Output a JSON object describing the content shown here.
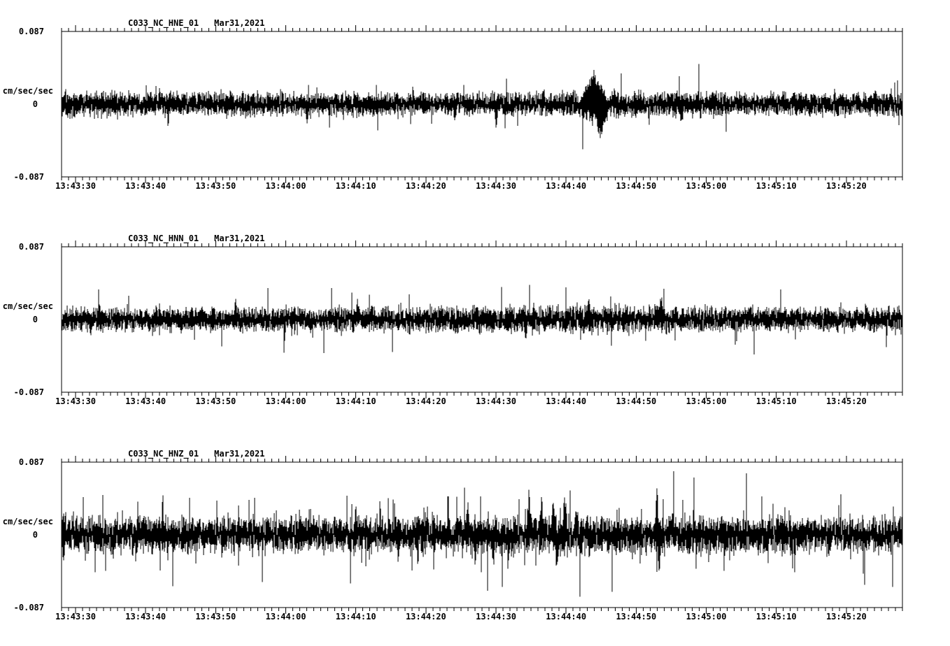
{
  "page": {
    "background": "#ffffff",
    "trace_color": "#000000",
    "axis_color": "#000000"
  },
  "chart_data": [
    {
      "type": "line",
      "title": "C033_NC_HNE_01",
      "date": "Mar31,2021",
      "series_name": "HNE",
      "ylabel": "cm/sec/sec",
      "ylim": [
        -0.087,
        0.087
      ],
      "yticks": [
        "0.087",
        "0",
        "-0.087"
      ],
      "x_start": "13:43:28",
      "x_end": "13:45:28",
      "duration_seconds": 120,
      "grid": false,
      "xticks": [
        "13:43:30",
        "13:43:40",
        "13:43:50",
        "13:44:00",
        "13:44:10",
        "13:44:20",
        "13:44:30",
        "13:44:40",
        "13:44:50",
        "13:45:00",
        "13:45:10",
        "13:45:20"
      ],
      "noise": {
        "seed": 11,
        "base_amplitude": 0.013,
        "spike_probability": 0.015,
        "spike_scale": 2.0
      },
      "envelope": [
        [
          0,
          1.12
        ],
        [
          0.2,
          1.0
        ],
        [
          0.45,
          0.95
        ],
        [
          0.6,
          1.0
        ],
        [
          0.63,
          1.32
        ],
        [
          0.67,
          1.05
        ],
        [
          0.85,
          0.95
        ],
        [
          1,
          1.08
        ]
      ],
      "events": [
        {
          "t": 0.633,
          "peak": 0.046,
          "width": 0.018
        },
        {
          "t": 0.641,
          "peak": -0.044,
          "width": 0.012
        },
        {
          "t": 0.517,
          "peak": -0.033,
          "width": 0.003
        },
        {
          "t": 0.468,
          "peak": -0.028,
          "width": 0.003
        },
        {
          "t": 0.292,
          "peak": -0.026,
          "width": 0.003
        },
        {
          "t": 0.737,
          "peak": -0.03,
          "width": 0.003
        },
        {
          "t": 0.573,
          "peak": 0.027,
          "width": 0.003
        }
      ]
    },
    {
      "type": "line",
      "title": "C033_NC_HNN_01",
      "date": "Mar31,2021",
      "series_name": "HNN",
      "ylabel": "cm/sec/sec",
      "ylim": [
        -0.087,
        0.087
      ],
      "yticks": [
        "0.087",
        "0",
        "-0.087"
      ],
      "x_start": "13:43:28",
      "x_end": "13:45:28",
      "duration_seconds": 120,
      "grid": false,
      "xticks": [
        "13:43:30",
        "13:43:40",
        "13:43:50",
        "13:44:00",
        "13:44:10",
        "13:44:20",
        "13:44:30",
        "13:44:40",
        "13:44:50",
        "13:45:00",
        "13:45:10",
        "13:45:20"
      ],
      "noise": {
        "seed": 22,
        "base_amplitude": 0.013,
        "spike_probability": 0.015,
        "spike_scale": 2.0
      },
      "envelope": [
        [
          0,
          1.0
        ],
        [
          0.35,
          1.02
        ],
        [
          0.5,
          1.12
        ],
        [
          0.68,
          1.15
        ],
        [
          0.8,
          1.02
        ],
        [
          0.92,
          1.0
        ],
        [
          1,
          1.06
        ]
      ],
      "events": [
        {
          "t": 0.552,
          "peak": -0.031,
          "width": 0.003
        },
        {
          "t": 0.627,
          "peak": 0.034,
          "width": 0.003
        },
        {
          "t": 0.713,
          "peak": 0.034,
          "width": 0.004
        },
        {
          "t": 0.352,
          "peak": 0.028,
          "width": 0.003
        },
        {
          "t": 0.207,
          "peak": 0.027,
          "width": 0.003
        }
      ]
    },
    {
      "type": "line",
      "title": "C033_NC_HNZ_01",
      "date": "Mar31,2021",
      "series_name": "HNZ",
      "ylabel": "cm/sec/sec",
      "ylim": [
        -0.087,
        0.087
      ],
      "yticks": [
        "0.087",
        "0",
        "-0.087"
      ],
      "x_start": "13:43:28",
      "x_end": "13:45:28",
      "duration_seconds": 120,
      "grid": false,
      "xticks": [
        "13:43:30",
        "13:43:40",
        "13:43:50",
        "13:44:00",
        "13:44:10",
        "13:44:20",
        "13:44:30",
        "13:44:40",
        "13:44:50",
        "13:45:00",
        "13:45:10",
        "13:45:20"
      ],
      "noise": {
        "seed": 33,
        "base_amplitude": 0.019,
        "spike_probability": 0.05,
        "spike_scale": 1.9
      },
      "envelope": [
        [
          0,
          1.05
        ],
        [
          0.25,
          1.0
        ],
        [
          0.45,
          1.08
        ],
        [
          0.55,
          1.15
        ],
        [
          0.65,
          1.12
        ],
        [
          0.78,
          1.02
        ],
        [
          1,
          1.06
        ]
      ],
      "events": [
        {
          "t": 0.35,
          "peak": 0.04,
          "width": 0.003
        },
        {
          "t": 0.4,
          "peak": -0.035,
          "width": 0.003
        },
        {
          "t": 0.483,
          "peak": 0.056,
          "width": 0.003
        },
        {
          "t": 0.492,
          "peak": -0.047,
          "width": 0.003
        },
        {
          "t": 0.513,
          "peak": -0.044,
          "width": 0.003
        },
        {
          "t": 0.556,
          "peak": 0.062,
          "width": 0.004
        },
        {
          "t": 0.571,
          "peak": 0.058,
          "width": 0.003
        },
        {
          "t": 0.585,
          "peak": 0.056,
          "width": 0.004
        },
        {
          "t": 0.589,
          "peak": -0.056,
          "width": 0.003
        },
        {
          "t": 0.598,
          "peak": 0.052,
          "width": 0.003
        },
        {
          "t": 0.612,
          "peak": 0.047,
          "width": 0.003
        },
        {
          "t": 0.628,
          "peak": -0.04,
          "width": 0.003
        },
        {
          "t": 0.708,
          "peak": 0.079,
          "width": 0.0025
        },
        {
          "t": 0.711,
          "peak": -0.071,
          "width": 0.0025
        }
      ]
    }
  ]
}
